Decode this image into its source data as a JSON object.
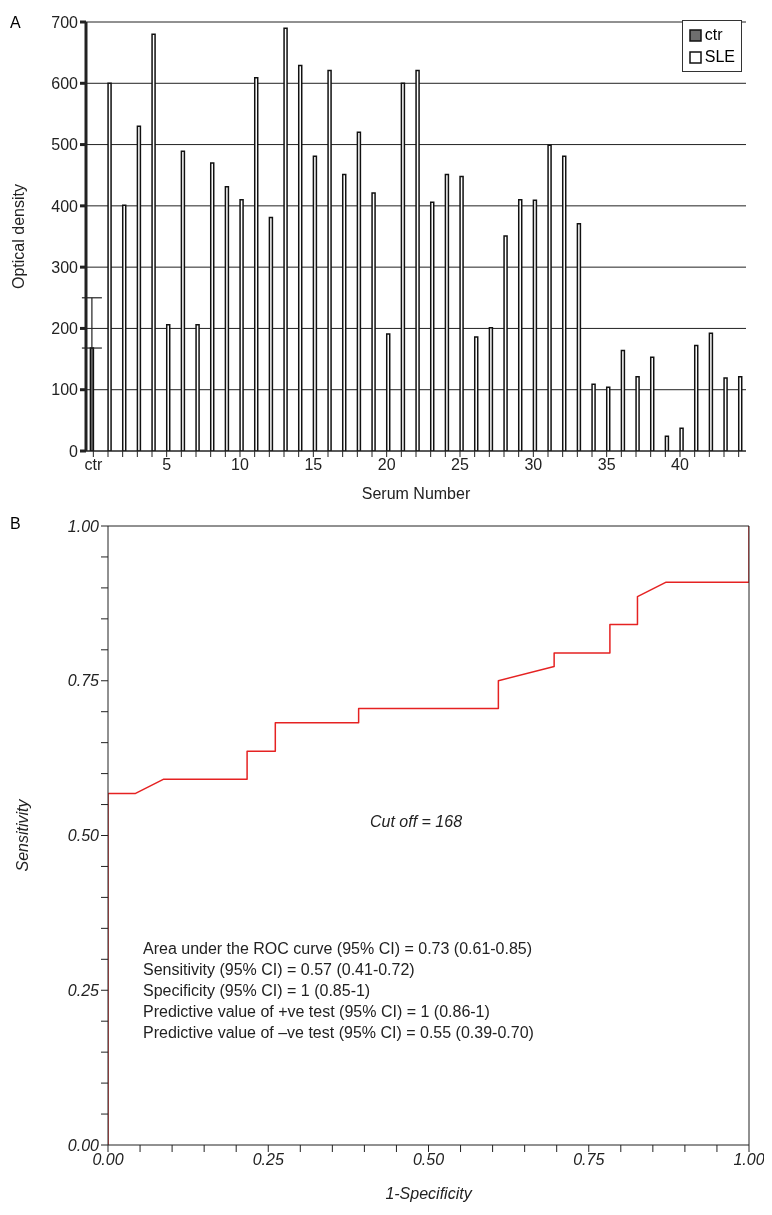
{
  "chart_data": [
    {
      "type": "bar",
      "title": "A",
      "xlabel": "Serum Number",
      "ylabel": "Optical density",
      "categories": [
        "ctr",
        null,
        null,
        null,
        null,
        "5",
        null,
        null,
        null,
        null,
        "10",
        null,
        null,
        null,
        null,
        "15",
        null,
        null,
        null,
        null,
        "20",
        null,
        null,
        null,
        null,
        "25",
        null,
        null,
        null,
        null,
        "30",
        null,
        null,
        null,
        null,
        "35",
        null,
        null,
        null,
        null,
        "40",
        null,
        null,
        null,
        null
      ],
      "series": [
        {
          "name": "ctr",
          "color": "#6e6e6e",
          "values": [
            168,
            null,
            null,
            null,
            null,
            null,
            null,
            null,
            null,
            null,
            null,
            null,
            null,
            null,
            null,
            null,
            null,
            null,
            null,
            null,
            null,
            null,
            null,
            null,
            null,
            null,
            null,
            null,
            null,
            null,
            null,
            null,
            null,
            null,
            null,
            null,
            null,
            null,
            null,
            null,
            null,
            null,
            null,
            null,
            null
          ],
          "errors": [
            [
              168,
              250
            ],
            null,
            null,
            null,
            null,
            null,
            null,
            null,
            null,
            null,
            null,
            null,
            null,
            null,
            null,
            null,
            null,
            null,
            null,
            null,
            null,
            null,
            null,
            null,
            null,
            null,
            null,
            null,
            null,
            null,
            null,
            null,
            null,
            null,
            null,
            null,
            null,
            null,
            null,
            null,
            null,
            null,
            null,
            null,
            null
          ]
        },
        {
          "name": "SLE",
          "color": "#ffffff",
          "values": [
            null,
            600,
            401,
            530,
            680,
            206,
            489,
            206,
            470,
            431,
            410,
            609,
            381,
            690,
            629,
            481,
            621,
            451,
            520,
            421,
            191,
            600,
            621,
            406,
            451,
            448,
            186,
            201,
            351,
            410,
            409,
            499,
            481,
            371,
            109,
            104,
            164,
            121,
            153,
            24,
            37,
            172,
            192,
            119,
            121
          ]
        }
      ],
      "ylim": [
        0,
        700
      ],
      "yticks": [
        0,
        100,
        200,
        300,
        400,
        500,
        600,
        700
      ],
      "grid": "y",
      "legend": "top right"
    },
    {
      "type": "line",
      "title": "B",
      "xlabel": "1-Specificity",
      "ylabel": "Sensitivity",
      "series": [
        {
          "color": "#e52222",
          "x": [
            0,
            0,
            0.043,
            0.087,
            0.217,
            0.217,
            0.261,
            0.261,
            0.391,
            0.391,
            0.609,
            0.609,
            0.696,
            0.696,
            0.783,
            0.783,
            0.826,
            0.826,
            0.87,
            1,
            1
          ],
          "values": [
            0,
            0.568,
            0.568,
            0.591,
            0.591,
            0.636,
            0.636,
            0.682,
            0.682,
            0.705,
            0.705,
            0.75,
            0.773,
            0.795,
            0.795,
            0.841,
            0.841,
            0.886,
            0.909,
            0.909,
            1
          ]
        }
      ],
      "xlim": [
        0,
        1
      ],
      "ylim": [
        0,
        1
      ],
      "xticks": [
        {
          "value": 0,
          "label": "0.00"
        },
        {
          "value": 0.05,
          "label": null
        },
        {
          "value": 0.1,
          "label": null
        },
        {
          "value": 0.15,
          "label": null
        },
        {
          "value": 0.2,
          "label": null
        },
        {
          "value": 0.25,
          "label": "0.25"
        },
        {
          "value": 0.3,
          "label": null
        },
        {
          "value": 0.35,
          "label": null
        },
        {
          "value": 0.4,
          "label": null
        },
        {
          "value": 0.45,
          "label": null
        },
        {
          "value": 0.5,
          "label": "0.50"
        },
        {
          "value": 0.55,
          "label": null
        },
        {
          "value": 0.6,
          "label": null
        },
        {
          "value": 0.65,
          "label": null
        },
        {
          "value": 0.7,
          "label": null
        },
        {
          "value": 0.75,
          "label": "0.75"
        },
        {
          "value": 0.8,
          "label": null
        },
        {
          "value": 0.85,
          "label": null
        },
        {
          "value": 0.9,
          "label": null
        },
        {
          "value": 0.95,
          "label": null
        },
        {
          "value": 1,
          "label": "1.00"
        }
      ],
      "yticks": [
        {
          "value": 0,
          "label": "0.00"
        },
        {
          "value": 0.05,
          "label": null
        },
        {
          "value": 0.1,
          "label": null
        },
        {
          "value": 0.15,
          "label": null
        },
        {
          "value": 0.2,
          "label": null
        },
        {
          "value": 0.25,
          "label": "0.25"
        },
        {
          "value": 0.3,
          "label": null
        },
        {
          "value": 0.35,
          "label": null
        },
        {
          "value": 0.4,
          "label": null
        },
        {
          "value": 0.45,
          "label": null
        },
        {
          "value": 0.5,
          "label": "0.50"
        },
        {
          "value": 0.55,
          "label": null
        },
        {
          "value": 0.6,
          "label": null
        },
        {
          "value": 0.65,
          "label": null
        },
        {
          "value": 0.7,
          "label": null
        },
        {
          "value": 0.75,
          "label": "0.75"
        },
        {
          "value": 0.8,
          "label": null
        },
        {
          "value": 0.85,
          "label": null
        },
        {
          "value": 0.9,
          "label": null
        },
        {
          "value": 0.95,
          "label": null
        },
        {
          "value": 1,
          "label": "1.00"
        }
      ],
      "marker": "none",
      "line_style": "solid",
      "annotations": [
        "Cut off = 168",
        "Area under the ROC curve (95% CI) = 0.73 (0.61-0.85)",
        "Sensitivity (95% CI) = 0.57 (0.41-0.72)",
        "Specificity (95% CI) = 1 (0.85-1)",
        "Predictive value of +ve test (95% CI) = 1 (0.86-1)",
        "Predictive value of –ve test (95% CI) = 0.55 (0.39-0.70)"
      ]
    }
  ]
}
